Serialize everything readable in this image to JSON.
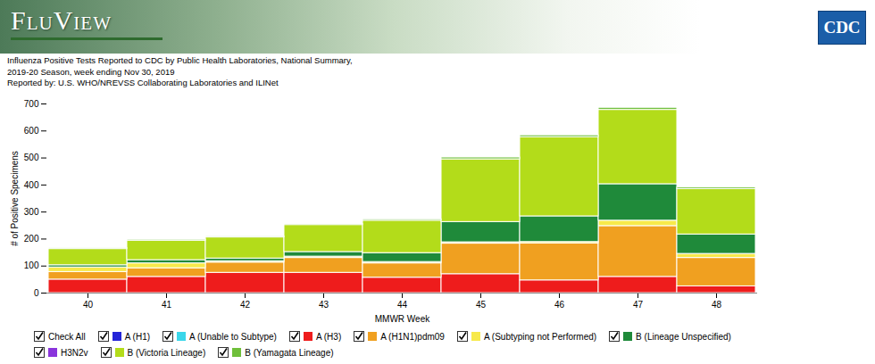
{
  "header": {
    "brand": "FluView",
    "logo": "CDC"
  },
  "chart_data": {
    "type": "bar",
    "stacked": true,
    "title": "Influenza Positive Tests Reported to CDC by Public Health Laboratories, National Summary,",
    "subtitle": "2019-20 Season, week ending Nov 30, 2019",
    "source": "Reported by: U.S. WHO/NREVSS Collaborating Laboratories and ILINet",
    "x_label": "MMWR Week",
    "y_label": "# of Positive Specimens",
    "categories": [
      40,
      41,
      42,
      43,
      44,
      45,
      46,
      47,
      48
    ],
    "ylim": [
      0,
      700
    ],
    "yticks": [
      0,
      100,
      200,
      300,
      400,
      500,
      600,
      700
    ],
    "grid": false,
    "legend": "bottom",
    "legend_all_label": "Check All",
    "series": [
      {
        "name": "A (H1)",
        "color": "#2424d8",
        "values": [
          0,
          0,
          0,
          0,
          0,
          0,
          0,
          0,
          0
        ]
      },
      {
        "name": "A (Unable to Subtype)",
        "color": "#3ad6ea",
        "values": [
          0,
          0,
          0,
          0,
          0,
          0,
          0,
          0,
          0
        ]
      },
      {
        "name": "A (H3)",
        "color": "#ee1c1c",
        "values": [
          50,
          60,
          75,
          75,
          57,
          70,
          47,
          60,
          25
        ]
      },
      {
        "name": "A (H1N1)pdm09",
        "color": "#f0a020",
        "values": [
          28,
          32,
          38,
          55,
          53,
          113,
          137,
          188,
          105
        ]
      },
      {
        "name": "A (Subtyping not Performed)",
        "color": "#f7e94a",
        "values": [
          17,
          18,
          5,
          5,
          5,
          5,
          5,
          20,
          15
        ]
      },
      {
        "name": "B (Lineage Unspecified)",
        "color": "#1f8a3a",
        "values": [
          8,
          12,
          10,
          17,
          33,
          75,
          95,
          135,
          72
        ]
      },
      {
        "name": "H3N2v",
        "color": "#8a34dc",
        "values": [
          0,
          0,
          0,
          0,
          0,
          0,
          0,
          0,
          0
        ]
      },
      {
        "name": "B (Victoria Lineage)",
        "color": "#b3dc1a",
        "values": [
          60,
          72,
          78,
          100,
          120,
          232,
          293,
          275,
          168
        ]
      },
      {
        "name": "B (Yamagata Lineage)",
        "color": "#6fbf3a",
        "values": [
          4,
          4,
          4,
          4,
          5,
          7,
          7,
          8,
          6
        ]
      }
    ]
  }
}
